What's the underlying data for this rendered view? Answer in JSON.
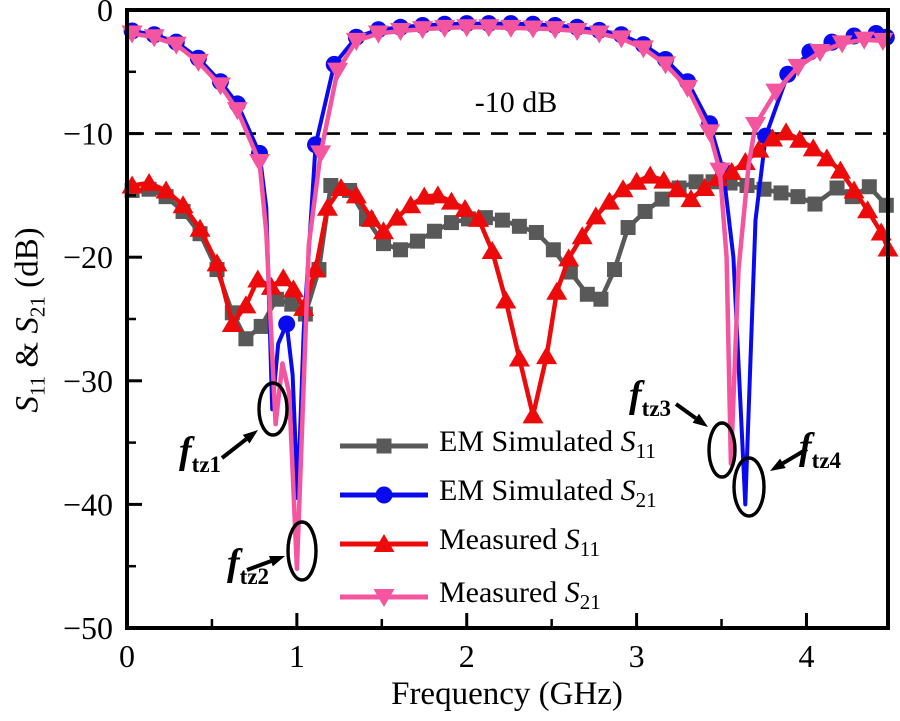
{
  "chart_data": {
    "type": "line",
    "title": "",
    "xlabel": "Frequency (GHz)",
    "ylabel_parts": {
      "sym1": "S",
      "sub1": "11",
      "amp": " & ",
      "sym2": "S",
      "sub2": "21",
      "unit": " (dB)"
    },
    "xlim": [
      0,
      4.48
    ],
    "ylim": [
      -50,
      0
    ],
    "xticks": [
      0,
      1,
      2,
      3,
      4
    ],
    "yticks": [
      0,
      -10,
      -20,
      -30,
      -40,
      -50
    ],
    "x_minor_step": 0.5,
    "y_minor_step": 5,
    "grid": false,
    "ticks_direction": "in",
    "threshold": {
      "y": -10,
      "label": "-10 dB"
    },
    "legend_position": "lower center inside",
    "legend": [
      {
        "prefix": "EM Simulated ",
        "sym": "S",
        "sub": "11",
        "series": 0
      },
      {
        "prefix": "EM Simulated ",
        "sym": "S",
        "sub": "21",
        "series": 1
      },
      {
        "prefix": "Measured ",
        "sym": "S",
        "sub": "11",
        "series": 2
      },
      {
        "prefix": "Measured ",
        "sym": "S",
        "sub": "21",
        "series": 3
      }
    ],
    "series": [
      {
        "name": "EM Simulated S11",
        "color": "#595959",
        "marker": "square",
        "lw": 4.5,
        "points": [
          [
            0.03,
            -14.6,
            1
          ],
          [
            0.13,
            -14.5,
            1
          ],
          [
            0.23,
            -15.1,
            1
          ],
          [
            0.33,
            -16.3,
            1
          ],
          [
            0.43,
            -18.1,
            1
          ],
          [
            0.53,
            -21.0,
            1
          ],
          [
            0.62,
            -24.5,
            1
          ],
          [
            0.7,
            -26.6,
            1
          ],
          [
            0.79,
            -25.6,
            1
          ],
          [
            0.88,
            -23.4,
            1
          ],
          [
            0.97,
            -23.8,
            1
          ],
          [
            1.05,
            -24.6,
            1
          ],
          [
            1.13,
            -21.0,
            1
          ],
          [
            1.2,
            -14.2,
            1
          ],
          [
            1.31,
            -14.6,
            1
          ],
          [
            1.41,
            -16.9,
            1
          ],
          [
            1.51,
            -18.9,
            1
          ],
          [
            1.61,
            -19.4,
            1
          ],
          [
            1.71,
            -18.7,
            1
          ],
          [
            1.81,
            -17.9,
            1
          ],
          [
            1.91,
            -17.2,
            1
          ],
          [
            2.01,
            -16.9,
            1
          ],
          [
            2.11,
            -16.8,
            1
          ],
          [
            2.21,
            -17.0,
            1
          ],
          [
            2.31,
            -17.5,
            1
          ],
          [
            2.41,
            -18.0,
            1
          ],
          [
            2.51,
            -19.4,
            1
          ],
          [
            2.61,
            -21.2,
            1
          ],
          [
            2.71,
            -23.0,
            1
          ],
          [
            2.79,
            -23.4,
            1
          ],
          [
            2.87,
            -21.0,
            1
          ],
          [
            2.95,
            -17.6,
            1
          ],
          [
            3.05,
            -16.3,
            1
          ],
          [
            3.15,
            -15.3,
            1
          ],
          [
            3.25,
            -14.4,
            1
          ],
          [
            3.35,
            -13.9,
            1
          ],
          [
            3.45,
            -13.9,
            1
          ],
          [
            3.55,
            -14.0,
            1
          ],
          [
            3.65,
            -14.2,
            1
          ],
          [
            3.75,
            -14.5,
            1
          ],
          [
            3.85,
            -14.8,
            1
          ],
          [
            3.95,
            -15.1,
            1
          ],
          [
            4.05,
            -15.7,
            1
          ],
          [
            4.18,
            -14.4,
            1
          ],
          [
            4.27,
            -15.1,
            1
          ],
          [
            4.37,
            -14.3,
            1
          ],
          [
            4.47,
            -15.8,
            1
          ]
        ]
      },
      {
        "name": "EM Simulated S21",
        "color": "#0a0aee",
        "marker": "circle",
        "lw": 4,
        "points": [
          [
            0.03,
            -1.7,
            1
          ],
          [
            0.16,
            -2.0,
            1
          ],
          [
            0.29,
            -2.6,
            1
          ],
          [
            0.42,
            -3.9,
            1
          ],
          [
            0.55,
            -5.8,
            1
          ],
          [
            0.65,
            -7.6,
            1
          ],
          [
            0.78,
            -11.6,
            1
          ],
          [
            0.82,
            -16.0,
            0
          ],
          [
            0.855,
            -32.3,
            0
          ],
          [
            0.89,
            -27.0,
            0
          ],
          [
            0.94,
            -25.4,
            1
          ],
          [
            0.975,
            -29.5,
            0
          ],
          [
            1.005,
            -39.5,
            0
          ],
          [
            1.04,
            -26.0,
            0
          ],
          [
            1.11,
            -10.9,
            1
          ],
          [
            1.22,
            -4.4,
            1
          ],
          [
            1.35,
            -2.2,
            1
          ],
          [
            1.48,
            -1.6,
            1
          ],
          [
            1.61,
            -1.4,
            1
          ],
          [
            1.74,
            -1.25,
            1
          ],
          [
            1.87,
            -1.15,
            1
          ],
          [
            2.0,
            -1.1,
            1
          ],
          [
            2.13,
            -1.1,
            1
          ],
          [
            2.26,
            -1.1,
            1
          ],
          [
            2.39,
            -1.15,
            1
          ],
          [
            2.52,
            -1.25,
            1
          ],
          [
            2.65,
            -1.4,
            1
          ],
          [
            2.78,
            -1.65,
            1
          ],
          [
            2.91,
            -2.0,
            1
          ],
          [
            3.04,
            -2.8,
            1
          ],
          [
            3.17,
            -4.0,
            1
          ],
          [
            3.3,
            -5.8,
            1
          ],
          [
            3.43,
            -9.2,
            1
          ],
          [
            3.51,
            -13.0,
            1
          ],
          [
            3.57,
            -20.0,
            0
          ],
          [
            3.64,
            -40.0,
            0
          ],
          [
            3.7,
            -17.0,
            0
          ],
          [
            3.76,
            -10.2,
            1
          ],
          [
            3.89,
            -5.2,
            1
          ],
          [
            4.02,
            -3.4,
            1
          ],
          [
            4.15,
            -2.6,
            1
          ],
          [
            4.28,
            -2.1,
            1
          ],
          [
            4.41,
            -1.9,
            1
          ],
          [
            4.47,
            -2.2,
            1
          ]
        ]
      },
      {
        "name": "Measured S11",
        "color": "#ec0a0a",
        "marker": "triangle-up",
        "lw": 4.5,
        "points": [
          [
            0.03,
            -14.2,
            1
          ],
          [
            0.13,
            -14.0,
            1
          ],
          [
            0.23,
            -14.6,
            1
          ],
          [
            0.33,
            -15.8,
            1
          ],
          [
            0.43,
            -17.7,
            1
          ],
          [
            0.53,
            -20.5,
            1
          ],
          [
            0.62,
            -25.4,
            1
          ],
          [
            0.7,
            -23.9,
            1
          ],
          [
            0.77,
            -21.8,
            1
          ],
          [
            0.85,
            -22.4,
            1
          ],
          [
            0.92,
            -21.7,
            1
          ],
          [
            0.98,
            -22.6,
            1
          ],
          [
            1.04,
            -24.1,
            1
          ],
          [
            1.11,
            -21.0,
            1
          ],
          [
            1.18,
            -16.0,
            1
          ],
          [
            1.26,
            -14.4,
            1
          ],
          [
            1.35,
            -15.0,
            1
          ],
          [
            1.44,
            -16.9,
            1
          ],
          [
            1.51,
            -17.9,
            1
          ],
          [
            1.59,
            -16.8,
            1
          ],
          [
            1.67,
            -15.8,
            1
          ],
          [
            1.75,
            -15.1,
            1
          ],
          [
            1.83,
            -15.0,
            1
          ],
          [
            1.91,
            -15.5,
            1
          ],
          [
            1.99,
            -16.1,
            1
          ],
          [
            2.07,
            -16.9,
            1
          ],
          [
            2.15,
            -19.5,
            1
          ],
          [
            2.23,
            -23.5,
            1
          ],
          [
            2.31,
            -28.2,
            1
          ],
          [
            2.39,
            -32.8,
            1
          ],
          [
            2.47,
            -28.0,
            1
          ],
          [
            2.53,
            -22.8,
            1
          ],
          [
            2.6,
            -20.1,
            1
          ],
          [
            2.68,
            -18.3,
            1
          ],
          [
            2.76,
            -16.7,
            1
          ],
          [
            2.84,
            -15.5,
            1
          ],
          [
            2.92,
            -14.5,
            1
          ],
          [
            3.0,
            -13.9,
            1
          ],
          [
            3.08,
            -13.4,
            1
          ],
          [
            3.16,
            -13.8,
            1
          ],
          [
            3.24,
            -14.5,
            1
          ],
          [
            3.32,
            -15.3,
            1
          ],
          [
            3.4,
            -14.4,
            1
          ],
          [
            3.48,
            -13.6,
            1
          ],
          [
            3.56,
            -13.1,
            1
          ],
          [
            3.64,
            -12.3,
            1
          ],
          [
            3.72,
            -11.3,
            1
          ],
          [
            3.8,
            -10.4,
            1
          ],
          [
            3.88,
            -9.9,
            1
          ],
          [
            3.96,
            -10.5,
            1
          ],
          [
            4.04,
            -11.2,
            1
          ],
          [
            4.12,
            -12.0,
            1
          ],
          [
            4.2,
            -13.0,
            1
          ],
          [
            4.28,
            -14.6,
            1
          ],
          [
            4.36,
            -16.2,
            1
          ],
          [
            4.44,
            -18.0,
            1
          ],
          [
            4.48,
            -19.3,
            1
          ]
        ]
      },
      {
        "name": "Measured S21",
        "color": "#f4559f",
        "marker": "triangle-down",
        "lw": 4.5,
        "points": [
          [
            0.03,
            -1.9,
            1
          ],
          [
            0.16,
            -2.2,
            1
          ],
          [
            0.29,
            -2.8,
            1
          ],
          [
            0.42,
            -4.2,
            1
          ],
          [
            0.55,
            -6.1,
            1
          ],
          [
            0.65,
            -8.1,
            1
          ],
          [
            0.78,
            -12.3,
            1
          ],
          [
            0.82,
            -18.0,
            0
          ],
          [
            0.875,
            -33.5,
            0
          ],
          [
            0.915,
            -28.6,
            0
          ],
          [
            0.955,
            -31.0,
            0
          ],
          [
            1.0,
            -45.2,
            0
          ],
          [
            1.03,
            -34.0,
            0
          ],
          [
            1.07,
            -19.0,
            0
          ],
          [
            1.14,
            -11.6,
            1
          ],
          [
            1.24,
            -4.9,
            1
          ],
          [
            1.35,
            -2.5,
            1
          ],
          [
            1.48,
            -1.9,
            1
          ],
          [
            1.61,
            -1.7,
            1
          ],
          [
            1.74,
            -1.55,
            1
          ],
          [
            1.87,
            -1.45,
            1
          ],
          [
            2.0,
            -1.4,
            1
          ],
          [
            2.13,
            -1.4,
            1
          ],
          [
            2.26,
            -1.45,
            1
          ],
          [
            2.39,
            -1.5,
            1
          ],
          [
            2.52,
            -1.55,
            1
          ],
          [
            2.65,
            -1.7,
            1
          ],
          [
            2.78,
            -1.9,
            1
          ],
          [
            2.91,
            -2.3,
            1
          ],
          [
            3.04,
            -3.1,
            1
          ],
          [
            3.17,
            -4.4,
            1
          ],
          [
            3.3,
            -6.3,
            1
          ],
          [
            3.43,
            -9.9,
            1
          ],
          [
            3.49,
            -13.0,
            1
          ],
          [
            3.53,
            -20.0,
            0
          ],
          [
            3.555,
            -36.7,
            0
          ],
          [
            3.6,
            -21.0,
            0
          ],
          [
            3.66,
            -12.5,
            0
          ],
          [
            3.7,
            -9.3,
            1
          ],
          [
            3.82,
            -6.6,
            1
          ],
          [
            3.95,
            -4.6,
            1
          ],
          [
            4.08,
            -3.4,
            1
          ],
          [
            4.21,
            -2.7,
            1
          ],
          [
            4.34,
            -2.4,
            1
          ],
          [
            4.45,
            -2.5,
            1
          ]
        ]
      }
    ],
    "annotations": [
      {
        "label": "f",
        "sub": "tz1",
        "freq_ghz": 0.86,
        "arrow": [
          [
            222,
            458
          ],
          [
            258,
            430
          ]
        ],
        "ellipse": [
          273,
          409,
          14,
          26
        ]
      },
      {
        "label": "f",
        "sub": "tz2",
        "freq_ghz": 1.0,
        "arrow": [
          [
            247,
            570
          ],
          [
            285,
            556
          ]
        ],
        "ellipse": [
          302,
          551,
          14,
          29
        ]
      },
      {
        "label": "f",
        "sub": "tz3",
        "freq_ghz": 3.56,
        "arrow": [
          [
            676,
            404
          ],
          [
            708,
            427
          ]
        ],
        "ellipse": [
          722,
          450,
          13,
          27
        ]
      },
      {
        "label": "f",
        "sub": "tz4",
        "freq_ghz": 3.64,
        "arrow": [
          [
            807,
            449
          ],
          [
            770,
            471
          ]
        ],
        "ellipse": [
          749,
          487,
          15,
          29
        ]
      }
    ]
  }
}
